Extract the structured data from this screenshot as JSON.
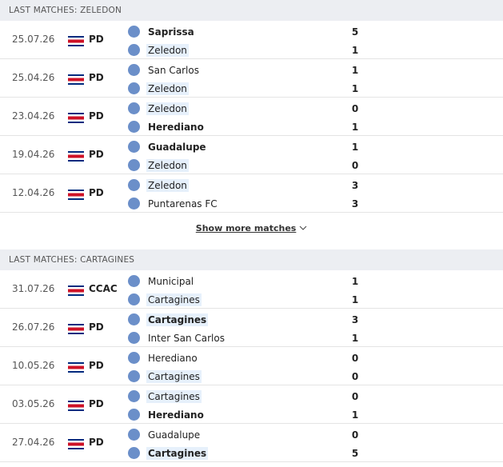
{
  "sections": [
    {
      "title": "LAST MATCHES: ZELEDON",
      "matches": [
        {
          "date": "25.07.26",
          "competition": "PD",
          "home": "Saprissa",
          "away": "Zeledon",
          "home_score": 5,
          "away_score": 1
        },
        {
          "date": "25.04.26",
          "competition": "PD",
          "home": "San Carlos",
          "away": "Zeledon",
          "home_score": 1,
          "away_score": 1
        },
        {
          "date": "23.04.26",
          "competition": "PD",
          "home": "Zeledon",
          "away": "Herediano",
          "home_score": 0,
          "away_score": 1
        },
        {
          "date": "19.04.26",
          "competition": "PD",
          "home": "Guadalupe",
          "away": "Zeledon",
          "home_score": 1,
          "away_score": 0
        },
        {
          "date": "12.04.26",
          "competition": "PD",
          "home": "Zeledon",
          "away": "Puntarenas FC",
          "home_score": 3,
          "away_score": 3
        }
      ],
      "show_more": "Show more matches"
    },
    {
      "title": "LAST MATCHES: CARTAGINES",
      "matches": [
        {
          "date": "31.07.26",
          "competition": "CCAC",
          "home": "Municipal",
          "away": "Cartagines",
          "home_score": 1,
          "away_score": 1
        },
        {
          "date": "26.07.26",
          "competition": "PD",
          "home": "Cartagines",
          "away": "Inter San Carlos",
          "home_score": 3,
          "away_score": 1
        },
        {
          "date": "10.05.26",
          "competition": "PD",
          "home": "Herediano",
          "away": "Cartagines",
          "home_score": 0,
          "away_score": 0
        },
        {
          "date": "03.05.26",
          "competition": "PD",
          "home": "Cartagines",
          "away": "Herediano",
          "home_score": 0,
          "away_score": 1
        },
        {
          "date": "27.04.26",
          "competition": "PD",
          "home": "Guadalupe",
          "away": "Cartagines",
          "home_score": 0,
          "away_score": 5
        }
      ]
    }
  ]
}
